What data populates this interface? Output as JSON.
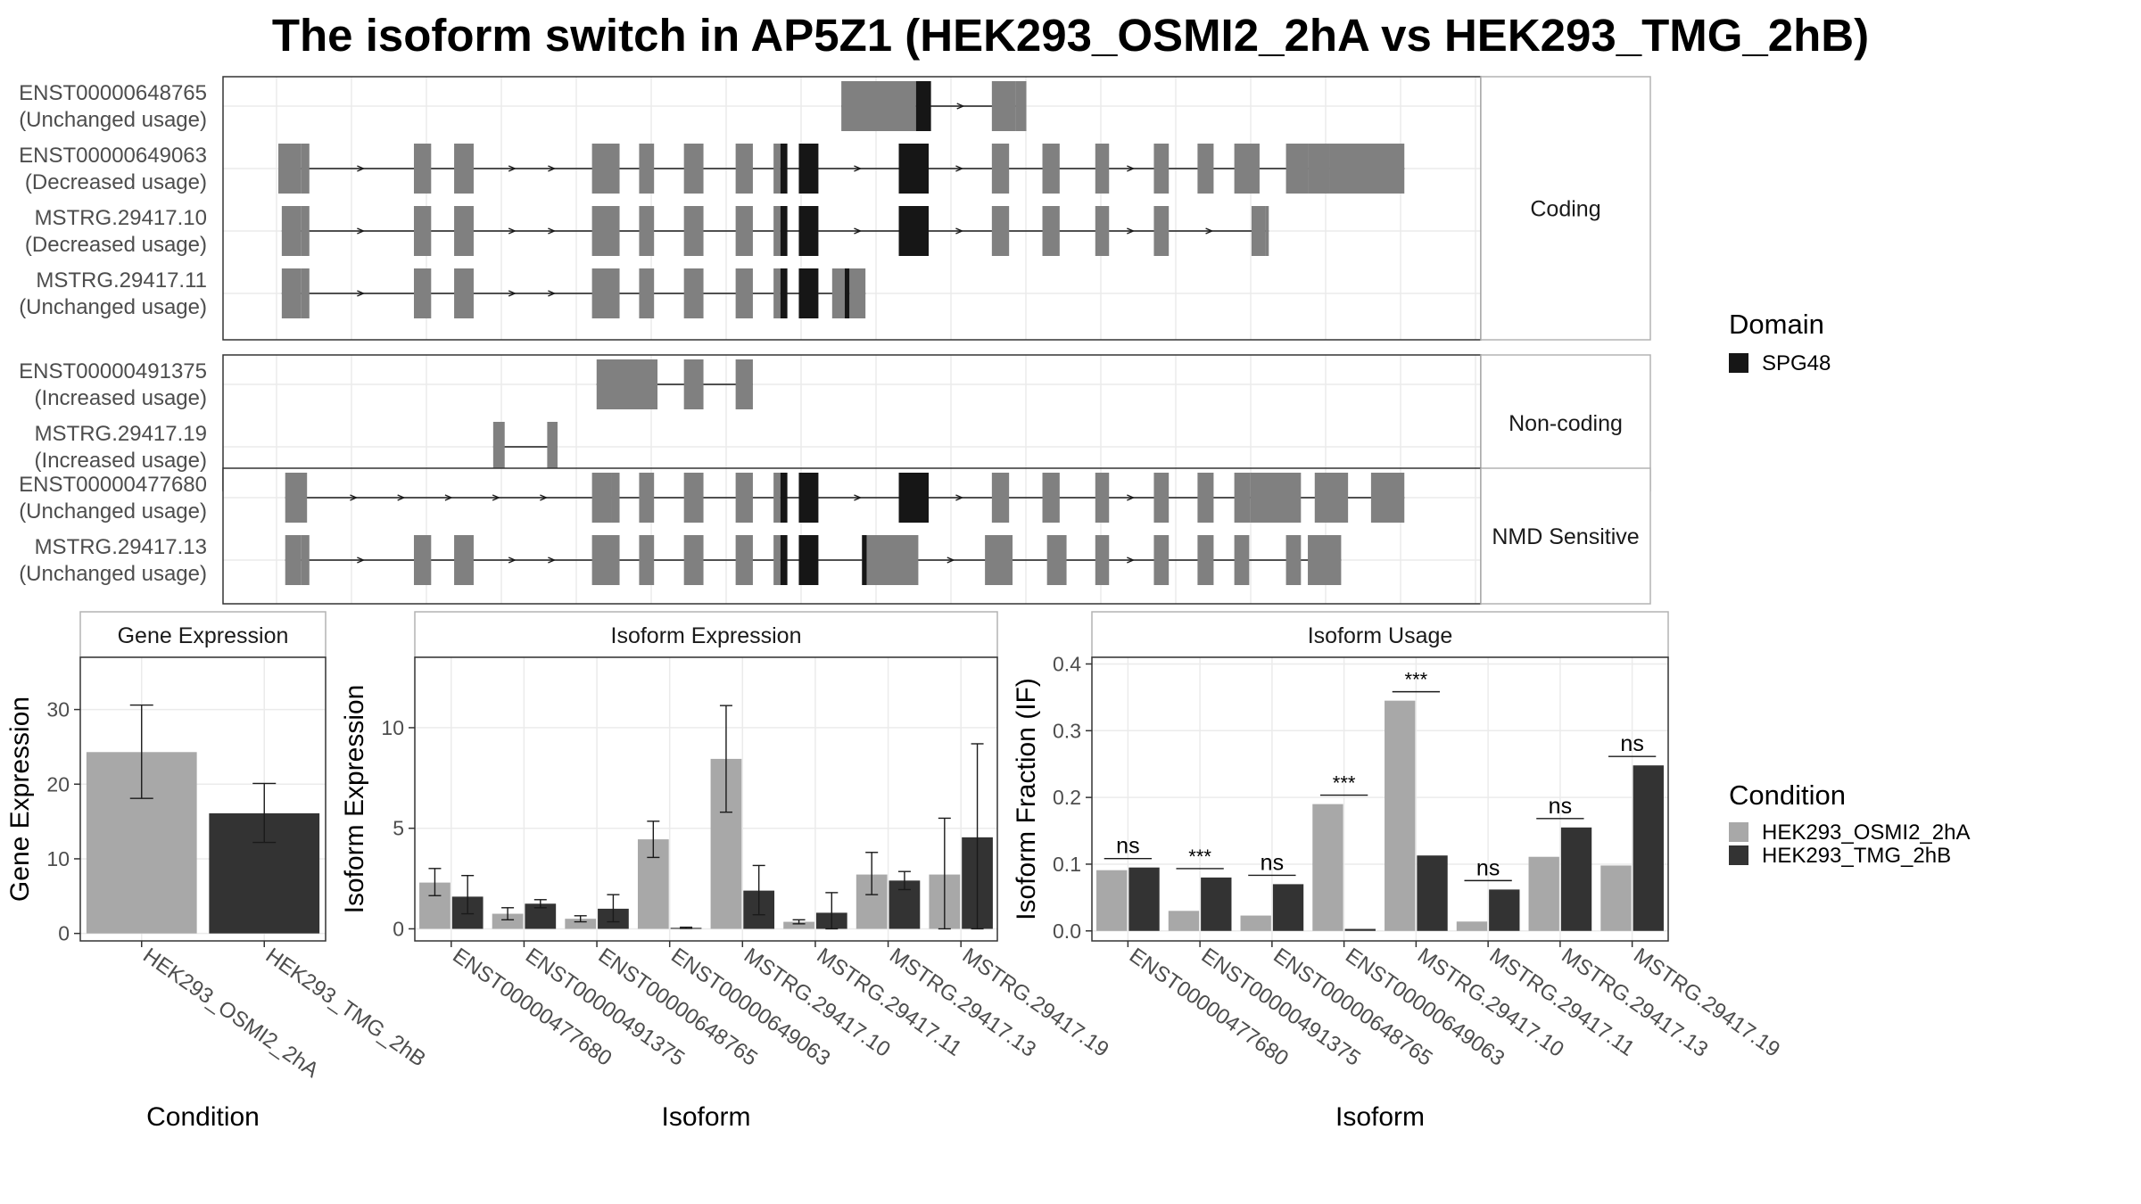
{
  "title": "The isoform switch in AP5Z1 (HEK293_OSMI2_2hA vs HEK293_TMG_2hB)",
  "colors": {
    "exon": "#808080",
    "domain": "#161616",
    "cond_a": "#a8a8a8",
    "cond_b": "#333333",
    "grid": "#ebebeb",
    "strip_border": "#b3b3b3",
    "panel_border": "#333333"
  },
  "chart_data": [
    {
      "type": "gene-structure",
      "genomic_range": [
        0,
        1000
      ],
      "domain_legend": {
        "title": "Domain",
        "entries": [
          "SPG48"
        ]
      },
      "groups": [
        {
          "label": "Coding",
          "transcripts": [
            {
              "id": "ENST00000648765",
              "usage": "(Unchanged usage)",
              "exons": [
                [
                  490,
                  555
                ],
                [
                  555,
                  568
                ],
                [
                  621,
                  642
                ],
                [
                  642,
                  651
                ]
              ],
              "domains": [
                [
                  555,
                  568
                ]
              ]
            },
            {
              "id": "ENST00000649063",
              "usage": "(Decreased usage)",
              "exons": [
                [
                  0,
                  20
                ],
                [
                  20,
                  27
                ],
                [
                  118,
                  133
                ],
                [
                  153,
                  170
                ],
                [
                  273,
                  297
                ],
                [
                  314,
                  327
                ],
                [
                  353,
                  370
                ],
                [
                  398,
                  413
                ],
                [
                  431,
                  437
                ],
                [
                  437,
                  443
                ],
                [
                  453,
                  470
                ],
                [
                  540,
                  566
                ],
                [
                  621,
                  636
                ],
                [
                  665,
                  680
                ],
                [
                  711,
                  723
                ],
                [
                  762,
                  775
                ],
                [
                  800,
                  814
                ],
                [
                  832,
                  854
                ],
                [
                  877,
                  896
                ],
                [
                  896,
                  915
                ],
                [
                  915,
                  980
                ]
              ],
              "domains": [
                [
                  437,
                  443
                ],
                [
                  453,
                  470
                ],
                [
                  540,
                  566
                ]
              ]
            },
            {
              "id": "MSTRG.29417.10",
              "usage": "(Decreased usage)",
              "exons": [
                [
                  3,
                  20
                ],
                [
                  20,
                  27
                ],
                [
                  118,
                  133
                ],
                [
                  153,
                  170
                ],
                [
                  273,
                  297
                ],
                [
                  314,
                  327
                ],
                [
                  353,
                  370
                ],
                [
                  398,
                  413
                ],
                [
                  431,
                  437
                ],
                [
                  437,
                  443
                ],
                [
                  453,
                  470
                ],
                [
                  540,
                  566
                ],
                [
                  621,
                  636
                ],
                [
                  665,
                  680
                ],
                [
                  711,
                  723
                ],
                [
                  762,
                  775
                ],
                [
                  847,
                  859
                ],
                [
                  859,
                  862
                ]
              ],
              "domains": [
                [
                  437,
                  443
                ],
                [
                  453,
                  470
                ],
                [
                  540,
                  566
                ]
              ]
            },
            {
              "id": "MSTRG.29417.11",
              "usage": "(Unchanged usage)",
              "exons": [
                [
                  3,
                  20
                ],
                [
                  20,
                  27
                ],
                [
                  118,
                  133
                ],
                [
                  153,
                  170
                ],
                [
                  273,
                  297
                ],
                [
                  314,
                  327
                ],
                [
                  353,
                  370
                ],
                [
                  398,
                  413
                ],
                [
                  431,
                  437
                ],
                [
                  437,
                  443
                ],
                [
                  453,
                  470
                ],
                [
                  482,
                  493
                ],
                [
                  493,
                  497
                ],
                [
                  497,
                  511
                ]
              ],
              "domains": [
                [
                  437,
                  443
                ],
                [
                  453,
                  470
                ],
                [
                  493,
                  497
                ]
              ]
            }
          ]
        },
        {
          "label": "Non-coding",
          "transcripts": [
            {
              "id": "ENST00000491375",
              "usage": "(Increased usage)",
              "exons": [
                [
                  277,
                  330
                ],
                [
                  353,
                  370
                ],
                [
                  398,
                  413
                ]
              ],
              "domains": []
            },
            {
              "id": "MSTRG.29417.19",
              "usage": "(Increased usage)",
              "exons": [
                [
                  187,
                  197
                ],
                [
                  234,
                  243
                ]
              ],
              "domains": []
            }
          ]
        },
        {
          "label": "NMD Sensitive",
          "transcripts": [
            {
              "id": "ENST00000477680",
              "usage": "(Unchanged usage)",
              "exons": [
                [
                  6,
                  25
                ],
                [
                  273,
                  290
                ],
                [
                  290,
                  297
                ],
                [
                  314,
                  327
                ],
                [
                  353,
                  370
                ],
                [
                  398,
                  413
                ],
                [
                  431,
                  437
                ],
                [
                  437,
                  443
                ],
                [
                  453,
                  470
                ],
                [
                  540,
                  566
                ],
                [
                  621,
                  636
                ],
                [
                  665,
                  680
                ],
                [
                  711,
                  723
                ],
                [
                  762,
                  775
                ],
                [
                  800,
                  814
                ],
                [
                  832,
                  846
                ],
                [
                  846,
                  890
                ],
                [
                  902,
                  931
                ],
                [
                  951,
                  980
                ]
              ],
              "domains": [
                [
                  437,
                  443
                ],
                [
                  453,
                  470
                ],
                [
                  540,
                  566
                ]
              ]
            },
            {
              "id": "MSTRG.29417.13",
              "usage": "(Unchanged usage)",
              "exons": [
                [
                  6,
                  20
                ],
                [
                  20,
                  27
                ],
                [
                  118,
                  133
                ],
                [
                  153,
                  170
                ],
                [
                  273,
                  297
                ],
                [
                  314,
                  327
                ],
                [
                  353,
                  370
                ],
                [
                  398,
                  413
                ],
                [
                  431,
                  437
                ],
                [
                  437,
                  443
                ],
                [
                  453,
                  470
                ],
                [
                  508,
                  512
                ],
                [
                  512,
                  557
                ],
                [
                  615,
                  639
                ],
                [
                  669,
                  686
                ],
                [
                  711,
                  723
                ],
                [
                  762,
                  775
                ],
                [
                  800,
                  814
                ],
                [
                  832,
                  845
                ],
                [
                  877,
                  890
                ],
                [
                  896,
                  925
                ]
              ],
              "domains": [
                [
                  437,
                  443
                ],
                [
                  453,
                  470
                ],
                [
                  508,
                  512
                ]
              ]
            }
          ]
        }
      ]
    },
    {
      "type": "bar",
      "title": "Gene Expression",
      "xlabel": "Condition",
      "ylabel": "Gene Expression",
      "ylim": [
        -1,
        37
      ],
      "yticks": [
        0,
        10,
        20,
        30
      ],
      "categories": [
        "HEK293_OSMI2_2hA",
        "HEK293_TMG_2hB"
      ],
      "values": [
        24.3,
        16.1
      ],
      "errors": [
        [
          18.1,
          30.6
        ],
        [
          12.2,
          20.1
        ]
      ]
    },
    {
      "type": "bar",
      "title": "Isoform Expression",
      "xlabel": "Isoform",
      "ylabel": "Isoform Expression",
      "ylim": [
        -0.6,
        13.5
      ],
      "yticks": [
        0,
        5,
        10
      ],
      "categories": [
        "ENST00000477680",
        "ENST00000491375",
        "ENST00000648765",
        "ENST00000649063",
        "MSTRG.29417.10",
        "MSTRG.29417.11",
        "MSTRG.29417.13",
        "MSTRG.29417.19"
      ],
      "series": [
        {
          "name": "HEK293_OSMI2_2hA",
          "values": [
            2.3,
            0.75,
            0.5,
            4.45,
            8.45,
            0.35,
            2.7,
            2.7
          ],
          "errors": [
            [
              1.65,
              3.0
            ],
            [
              0.45,
              1.05
            ],
            [
              0.35,
              0.65
            ],
            [
              3.55,
              5.35
            ],
            [
              5.8,
              11.1
            ],
            [
              0.25,
              0.45
            ],
            [
              1.7,
              3.8
            ],
            [
              0.0,
              5.5
            ]
          ]
        },
        {
          "name": "HEK293_TMG_2hB",
          "values": [
            1.6,
            1.25,
            1.0,
            0.05,
            1.9,
            0.8,
            2.4,
            4.55
          ],
          "errors": [
            [
              0.75,
              2.65
            ],
            [
              1.05,
              1.45
            ],
            [
              0.35,
              1.7
            ],
            [
              0.02,
              0.08
            ],
            [
              0.7,
              3.15
            ],
            [
              0.0,
              1.8
            ],
            [
              1.95,
              2.85
            ],
            [
              0.0,
              9.2
            ]
          ]
        }
      ]
    },
    {
      "type": "bar",
      "title": "Isoform Usage",
      "xlabel": "Isoform",
      "ylabel": "Isoform Fraction (IF)",
      "ylim": [
        -0.015,
        0.41
      ],
      "yticks": [
        "0.0",
        "0.1",
        "0.2",
        "0.3",
        "0.4"
      ],
      "categories": [
        "ENST00000477680",
        "ENST00000491375",
        "ENST00000648765",
        "ENST00000649063",
        "MSTRG.29417.10",
        "MSTRG.29417.11",
        "MSTRG.29417.13",
        "MSTRG.29417.19"
      ],
      "series": [
        {
          "name": "HEK293_OSMI2_2hA",
          "values": [
            0.091,
            0.03,
            0.023,
            0.19,
            0.345,
            0.014,
            0.111,
            0.098
          ]
        },
        {
          "name": "HEK293_TMG_2hB",
          "values": [
            0.095,
            0.08,
            0.07,
            0.003,
            0.113,
            0.062,
            0.155,
            0.248
          ]
        }
      ],
      "significance": [
        "ns",
        "***",
        "ns",
        "***",
        "***",
        "ns",
        "ns",
        "ns"
      ]
    }
  ],
  "condition_legend": {
    "title": "Condition",
    "entries": [
      "HEK293_OSMI2_2hA",
      "HEK293_TMG_2hB"
    ]
  }
}
